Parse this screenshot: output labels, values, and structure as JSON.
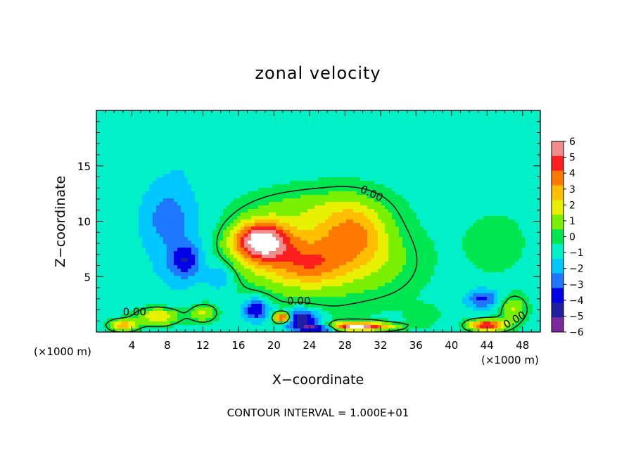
{
  "chart_data": {
    "type": "heatmap",
    "title": "zonal velocity",
    "xlabel": "X−coordinate",
    "ylabel": "Z−coordinate",
    "x_unit": "(×1000 m)",
    "x_unit_right": "(×1000 m)",
    "footer": "CONTOUR INTERVAL = 1.000E+01",
    "xlim": [
      0,
      50
    ],
    "ylim": [
      0,
      20
    ],
    "x_ticks": [
      4,
      8,
      12,
      16,
      20,
      24,
      28,
      32,
      36,
      40,
      44,
      48
    ],
    "x_tick_labels": [
      "4",
      "8",
      "12",
      "16",
      "20",
      "24",
      "28",
      "32",
      "36",
      "40",
      "44",
      "48"
    ],
    "y_ticks": [
      5,
      10,
      15
    ],
    "y_tick_labels": [
      "5",
      "10",
      "15"
    ],
    "colorbar": {
      "min": -6,
      "max": 6,
      "tick_values": [
        6,
        5,
        4,
        3,
        2,
        1,
        0,
        -1,
        -2,
        -3,
        -4,
        -5,
        -6
      ],
      "tick_labels": [
        "6",
        "5",
        "4",
        "3",
        "2",
        "1",
        "0",
        "−1",
        "−2",
        "−3",
        "−4",
        "−5",
        "−6"
      ]
    },
    "contour_labels": [
      {
        "text": "0.00",
        "x": 31,
        "y": 12.5
      },
      {
        "text": "0.00",
        "x": 4.3,
        "y": 1.8
      },
      {
        "text": "0.00",
        "x": 22.8,
        "y": 2.8
      },
      {
        "text": "0.00",
        "x": 47.1,
        "y": 1.1
      }
    ],
    "features": [
      {
        "x": 18.5,
        "y": 8.2,
        "value": 6.5,
        "sx": 3.0,
        "sy": 1.7
      },
      {
        "x": 19.5,
        "y": 7.3,
        "value": 1.6,
        "sx": 6.0,
        "sy": 3.2
      },
      {
        "x": 29,
        "y": 9.0,
        "value": 3.2,
        "sx": 3.8,
        "sy": 2.8
      },
      {
        "x": 24,
        "y": 6.0,
        "value": 2.3,
        "sx": 4.2,
        "sy": 1.8
      },
      {
        "x": 25.5,
        "y": 7.0,
        "value": 2.4,
        "sx": 8.0,
        "sy": 4.6
      },
      {
        "x": 33,
        "y": 6.0,
        "value": 0.8,
        "sx": 4.0,
        "sy": 2.8
      },
      {
        "x": 24,
        "y": 11.5,
        "value": 0.8,
        "sx": 7.0,
        "sy": 1.5
      },
      {
        "x": 10,
        "y": 6.5,
        "value": -3.0,
        "sx": 1.8,
        "sy": 1.6
      },
      {
        "x": 8,
        "y": 10.5,
        "value": -1.6,
        "sx": 2.5,
        "sy": 2.5
      },
      {
        "x": 9,
        "y": 8.0,
        "value": -0.9,
        "sx": 4.5,
        "sy": 5.5
      },
      {
        "x": 14,
        "y": 5.0,
        "value": -1.8,
        "sx": 1.5,
        "sy": 1.2
      },
      {
        "x": 12,
        "y": 16.0,
        "value": -0.5,
        "sx": 7.0,
        "sy": 2.5
      },
      {
        "x": 18.0,
        "y": 2.0,
        "value": -4.0,
        "sx": 1.5,
        "sy": 1.0
      },
      {
        "x": 23,
        "y": 1.2,
        "value": -5.0,
        "sx": 2.0,
        "sy": 0.8
      },
      {
        "x": 21,
        "y": 1.3,
        "value": 7.0,
        "sx": 1.0,
        "sy": 0.45
      },
      {
        "x": 29,
        "y": 0.5,
        "value": 8.0,
        "sx": 4.0,
        "sy": 0.35
      },
      {
        "x": 25,
        "y": 0.4,
        "value": -6.5,
        "sx": 2.5,
        "sy": 0.35
      },
      {
        "x": 7,
        "y": 1.4,
        "value": 3.5,
        "sx": 2.5,
        "sy": 0.8
      },
      {
        "x": 3,
        "y": 0.6,
        "value": 4.0,
        "sx": 1.6,
        "sy": 0.5
      },
      {
        "x": 12,
        "y": 1.7,
        "value": 2.6,
        "sx": 1.5,
        "sy": 0.8
      },
      {
        "x": 44,
        "y": 0.6,
        "value": 6.5,
        "sx": 2.0,
        "sy": 0.5
      },
      {
        "x": 43.5,
        "y": 3.0,
        "value": -3.0,
        "sx": 1.8,
        "sy": 0.9
      },
      {
        "x": 47,
        "y": 2.0,
        "value": 2.4,
        "sx": 1.5,
        "sy": 1.2
      },
      {
        "x": 37,
        "y": 1.5,
        "value": 0.8,
        "sx": 2.0,
        "sy": 1.0
      },
      {
        "x": 45,
        "y": 8.0,
        "value": 0.6,
        "sx": 5.0,
        "sy": 4.0
      }
    ],
    "background_value": -0.9
  }
}
